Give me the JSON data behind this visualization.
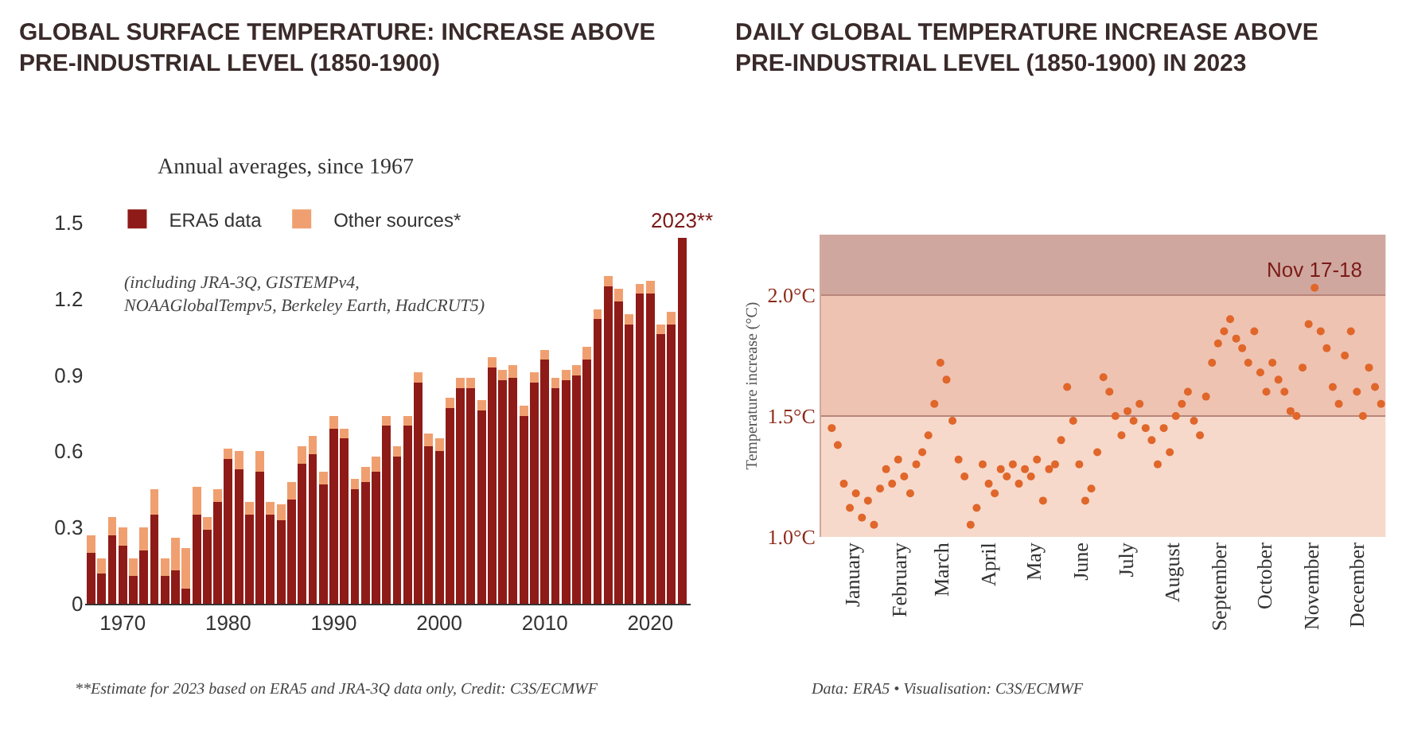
{
  "chart_data": [
    {
      "type": "bar",
      "title": "GLOBAL SURFACE TEMPERATURE: INCREASE ABOVE PRE-INDUSTRIAL LEVEL (1850-1900)",
      "subtitle": "Annual averages, since 1967",
      "x": [
        1967,
        1968,
        1969,
        1970,
        1971,
        1972,
        1973,
        1974,
        1975,
        1976,
        1977,
        1978,
        1979,
        1980,
        1981,
        1982,
        1983,
        1984,
        1985,
        1986,
        1987,
        1988,
        1989,
        1990,
        1991,
        1992,
        1993,
        1994,
        1995,
        1996,
        1997,
        1998,
        1999,
        2000,
        2001,
        2002,
        2003,
        2004,
        2005,
        2006,
        2007,
        2008,
        2009,
        2010,
        2011,
        2012,
        2013,
        2014,
        2015,
        2016,
        2017,
        2018,
        2019,
        2020,
        2021,
        2022,
        2023
      ],
      "stacked": true,
      "series": [
        {
          "name": "ERA5 data",
          "color": "#8e1b17",
          "values": [
            0.2,
            0.12,
            0.27,
            0.23,
            0.11,
            0.21,
            0.35,
            0.11,
            0.13,
            0.06,
            0.35,
            0.29,
            0.4,
            0.57,
            0.53,
            0.35,
            0.52,
            0.35,
            0.33,
            0.41,
            0.55,
            0.59,
            0.47,
            0.69,
            0.65,
            0.45,
            0.48,
            0.52,
            0.7,
            0.58,
            0.7,
            0.87,
            0.62,
            0.6,
            0.77,
            0.85,
            0.85,
            0.76,
            0.93,
            0.88,
            0.89,
            0.74,
            0.87,
            0.96,
            0.85,
            0.88,
            0.9,
            0.96,
            1.12,
            1.25,
            1.19,
            1.1,
            1.22,
            1.22,
            1.06,
            1.1,
            1.44
          ]
        },
        {
          "name": "Other sources*",
          "color": "#f0a070",
          "values": [
            0.07,
            0.06,
            0.07,
            0.07,
            0.07,
            0.09,
            0.1,
            0.07,
            0.13,
            0.16,
            0.11,
            0.05,
            0.05,
            0.04,
            0.07,
            0.05,
            0.08,
            0.05,
            0.06,
            0.07,
            0.07,
            0.07,
            0.05,
            0.05,
            0.04,
            0.04,
            0.06,
            0.06,
            0.04,
            0.04,
            0.04,
            0.04,
            0.05,
            0.05,
            0.04,
            0.04,
            0.04,
            0.04,
            0.04,
            0.04,
            0.05,
            0.04,
            0.04,
            0.04,
            0.04,
            0.04,
            0.04,
            0.05,
            0.04,
            0.04,
            0.05,
            0.04,
            0.04,
            0.05,
            0.04,
            0.05,
            0
          ]
        }
      ],
      "xlim": [
        1966.4,
        2023.8
      ],
      "xticks": [
        1970,
        1980,
        1990,
        2000,
        2010,
        2020
      ],
      "ylim": [
        0,
        1.55
      ],
      "yticks": [
        0,
        0.3,
        0.6,
        0.9,
        1.2,
        1.5
      ],
      "grid": false,
      "legend": "top left",
      "annotations": [
        {
          "text": "2023**",
          "x": 2023,
          "y": 1.44
        },
        "(including JRA-3Q, GISTEMPv4, NOAAGlobalTempv5, Berkeley Earth, HadCRUT5)",
        "**Estimate for 2023 based on ERA5 and JRA-3Q data only, Credit: C3S/ECMWF"
      ]
    },
    {
      "type": "scatter",
      "title": "DAILY GLOBAL TEMPERATURE INCREASE ABOVE PRE-INDUSTRIAL LEVEL (1850-1900) IN 2023",
      "ylabel": "Temperature increase (°C)",
      "x": [
        "2023-01-01",
        "2023-01-05",
        "2023-01-09",
        "2023-01-13",
        "2023-01-17",
        "2023-01-21",
        "2023-01-25",
        "2023-01-29",
        "2023-02-02",
        "2023-02-06",
        "2023-02-10",
        "2023-02-14",
        "2023-02-18",
        "2023-02-22",
        "2023-02-26",
        "2023-03-02",
        "2023-03-06",
        "2023-03-10",
        "2023-03-14",
        "2023-03-18",
        "2023-03-22",
        "2023-03-26",
        "2023-03-30",
        "2023-04-03",
        "2023-04-07",
        "2023-04-11",
        "2023-04-15",
        "2023-04-19",
        "2023-04-23",
        "2023-04-27",
        "2023-05-01",
        "2023-05-05",
        "2023-05-09",
        "2023-05-13",
        "2023-05-17",
        "2023-05-21",
        "2023-05-25",
        "2023-05-29",
        "2023-06-02",
        "2023-06-06",
        "2023-06-10",
        "2023-06-14",
        "2023-06-18",
        "2023-06-22",
        "2023-06-26",
        "2023-06-30",
        "2023-07-04",
        "2023-07-08",
        "2023-07-12",
        "2023-07-16",
        "2023-07-20",
        "2023-07-24",
        "2023-07-28",
        "2023-08-01",
        "2023-08-05",
        "2023-08-09",
        "2023-08-13",
        "2023-08-17",
        "2023-08-21",
        "2023-08-25",
        "2023-08-29",
        "2023-09-02",
        "2023-09-06",
        "2023-09-10",
        "2023-09-14",
        "2023-09-18",
        "2023-09-22",
        "2023-09-26",
        "2023-09-30",
        "2023-10-04",
        "2023-10-08",
        "2023-10-12",
        "2023-10-16",
        "2023-10-20",
        "2023-10-24",
        "2023-10-28",
        "2023-11-01",
        "2023-11-05",
        "2023-11-09",
        "2023-11-13",
        "2023-11-17",
        "2023-11-21",
        "2023-11-25",
        "2023-11-29",
        "2023-12-03",
        "2023-12-07",
        "2023-12-11",
        "2023-12-15",
        "2023-12-19",
        "2023-12-23",
        "2023-12-27",
        "2023-12-31"
      ],
      "series": [
        {
          "color": "#e0662a",
          "values": [
            1.45,
            1.38,
            1.22,
            1.12,
            1.18,
            1.08,
            1.15,
            1.05,
            1.2,
            1.28,
            1.22,
            1.32,
            1.25,
            1.18,
            1.3,
            1.35,
            1.42,
            1.55,
            1.72,
            1.65,
            1.48,
            1.32,
            1.25,
            1.05,
            1.12,
            1.3,
            1.22,
            1.18,
            1.28,
            1.25,
            1.3,
            1.22,
            1.28,
            1.25,
            1.32,
            1.15,
            1.28,
            1.3,
            1.4,
            1.62,
            1.48,
            1.3,
            1.15,
            1.2,
            1.35,
            1.66,
            1.6,
            1.5,
            1.42,
            1.52,
            1.48,
            1.55,
            1.45,
            1.4,
            1.3,
            1.45,
            1.35,
            1.5,
            1.55,
            1.6,
            1.48,
            1.42,
            1.58,
            1.72,
            1.8,
            1.85,
            1.9,
            1.82,
            1.78,
            1.72,
            1.85,
            1.68,
            1.6,
            1.72,
            1.65,
            1.6,
            1.52,
            1.5,
            1.7,
            1.88,
            2.03,
            1.85,
            1.78,
            1.62,
            1.55,
            1.75,
            1.85,
            1.6,
            1.5,
            1.7,
            1.62,
            1.55
          ]
        }
      ],
      "marker": "circle",
      "xlim": [
        "2022-12-25",
        "2024-01-03"
      ],
      "xticks": [
        {
          "value": "2023-01-15",
          "label": "January"
        },
        {
          "value": "2023-02-15",
          "label": "February"
        },
        {
          "value": "2023-03-15",
          "label": "March"
        },
        {
          "value": "2023-04-15",
          "label": "April"
        },
        {
          "value": "2023-05-15",
          "label": "May"
        },
        {
          "value": "2023-06-15",
          "label": "June"
        },
        {
          "value": "2023-07-15",
          "label": "July"
        },
        {
          "value": "2023-08-15",
          "label": "August"
        },
        {
          "value": "2023-09-15",
          "label": "September"
        },
        {
          "value": "2023-10-15",
          "label": "October"
        },
        {
          "value": "2023-11-15",
          "label": "November"
        },
        {
          "value": "2023-12-15",
          "label": "December"
        }
      ],
      "ylim": [
        1.0,
        2.25
      ],
      "yticks": [
        {
          "value": 1.0,
          "label": "1.0°C"
        },
        {
          "value": 1.5,
          "label": "1.5°C"
        },
        {
          "value": 2.0,
          "label": "2.0°C"
        }
      ],
      "grid": "y",
      "bands": [
        {
          "axis": "y",
          "from": 1.0,
          "to": 1.5,
          "color": "#f6d9cb"
        },
        {
          "axis": "y",
          "from": 1.5,
          "to": 2.0,
          "color": "#eec3b2"
        },
        {
          "axis": "y",
          "from": 2.0,
          "to": 2.25,
          "color": "#cfa79e"
        }
      ],
      "annotations": [
        {
          "text": "Nov 17-18",
          "x": "2023-11-17",
          "y": 2.03
        },
        "Data: ERA5 • Visualisation: C3S/ECMWF"
      ]
    }
  ]
}
